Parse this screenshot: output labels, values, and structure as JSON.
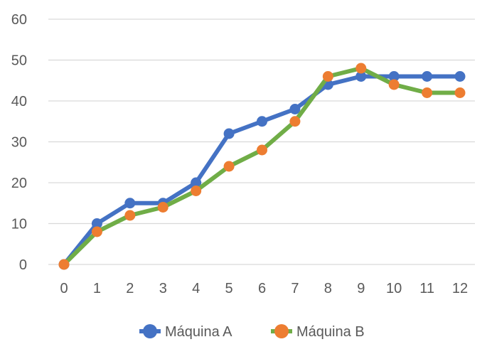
{
  "chart_data": {
    "type": "line",
    "x": [
      0,
      1,
      2,
      3,
      4,
      5,
      6,
      7,
      8,
      9,
      10,
      11,
      12
    ],
    "series": [
      {
        "name": "Máquina A",
        "color": "#4472C4",
        "values": [
          0,
          10,
          15,
          15,
          20,
          32,
          35,
          38,
          44,
          46,
          46,
          46,
          46
        ]
      },
      {
        "name": "Máquina B",
        "color": "#ED7D31",
        "line_color": "#70AD47",
        "values": [
          0,
          8,
          12,
          14,
          18,
          24,
          28,
          35,
          46,
          48,
          44,
          42,
          42
        ]
      }
    ],
    "x_ticks": [
      "0",
      "1",
      "2",
      "3",
      "4",
      "5",
      "6",
      "7",
      "8",
      "9",
      "10",
      "11",
      "12"
    ],
    "y_ticks": [
      "0",
      "10",
      "20",
      "30",
      "40",
      "50",
      "60"
    ],
    "ylim": [
      0,
      60
    ],
    "xlim": [
      0,
      12
    ],
    "grid": true,
    "legend_position": "bottom",
    "title": "",
    "xlabel": "",
    "ylabel": ""
  }
}
